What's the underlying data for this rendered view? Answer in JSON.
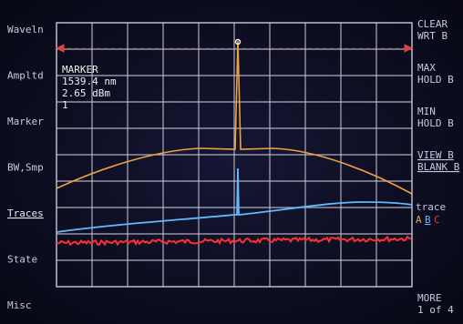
{
  "left_menu": [
    "Waveln",
    "Ampltd",
    "Marker",
    "BW,Smp",
    "Traces",
    "State",
    "Misc"
  ],
  "active_menu": "Traces",
  "right_softkeys": [
    [
      "CLEAR",
      "WRT B"
    ],
    [
      "MAX",
      "HOLD B"
    ],
    [
      "MIN",
      "HOLD B"
    ],
    [
      "VIEW B",
      "BLANK B"
    ]
  ],
  "trace_key": {
    "label": "trace",
    "options": [
      "A",
      "B",
      "C"
    ]
  },
  "more_key": [
    "MORE",
    "1 of 4"
  ],
  "marker": {
    "title": "MARKER",
    "wavelength": "1539.4 nm",
    "power": "2.65 dBm",
    "number": "1"
  }
}
